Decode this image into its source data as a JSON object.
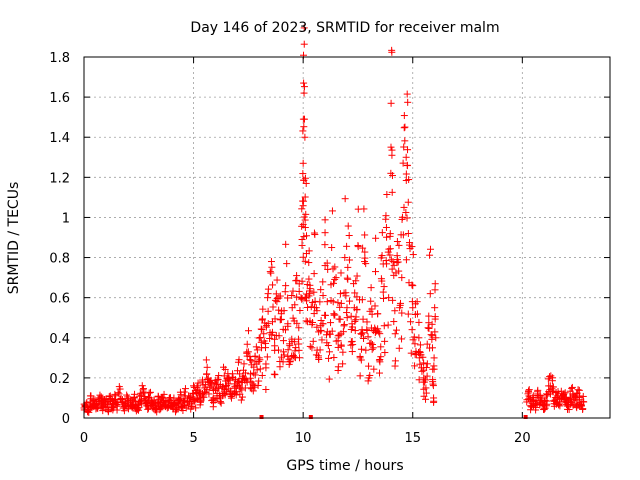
{
  "chart_data": {
    "type": "scatter",
    "title": "Day 146 of 2023, SRMTID for receiver malm",
    "xlabel": "GPS time / hours",
    "ylabel": "SRMTID / TECUs",
    "xlim": [
      0,
      24
    ],
    "ylim": [
      0,
      1.8
    ],
    "xticks": [
      0,
      5,
      10,
      15,
      20
    ],
    "xtick_labels": [
      "0",
      "5",
      "10",
      "15",
      "20"
    ],
    "yticks": [
      0,
      0.2,
      0.4,
      0.6,
      0.8,
      1,
      1.2,
      1.4,
      1.6,
      1.8
    ],
    "ytick_labels": [
      "0",
      "0.2",
      "0.4",
      "0.6",
      "0.8",
      "1",
      "1.2",
      "1.4",
      "1.6",
      "1.8"
    ],
    "grid": true,
    "marker": "+",
    "color": "#ff0000",
    "points": [
      [
        0.0,
        0.05
      ],
      [
        0.1,
        0.07
      ],
      [
        0.2,
        0.04
      ],
      [
        0.3,
        0.08
      ],
      [
        0.4,
        0.06
      ],
      [
        0.5,
        0.09
      ],
      [
        0.6,
        0.05
      ],
      [
        0.7,
        0.1
      ],
      [
        0.8,
        0.07
      ],
      [
        0.9,
        0.06
      ],
      [
        1.0,
        0.08
      ],
      [
        1.1,
        0.05
      ],
      [
        1.2,
        0.11
      ],
      [
        1.3,
        0.07
      ],
      [
        1.4,
        0.09
      ],
      [
        1.5,
        0.06
      ],
      [
        1.6,
        0.12
      ],
      [
        1.7,
        0.08
      ],
      [
        1.8,
        0.05
      ],
      [
        1.9,
        0.07
      ],
      [
        2.0,
        0.09
      ],
      [
        2.1,
        0.06
      ],
      [
        2.2,
        0.08
      ],
      [
        2.3,
        0.1
      ],
      [
        2.4,
        0.05
      ],
      [
        2.5,
        0.07
      ],
      [
        2.6,
        0.09
      ],
      [
        2.7,
        0.13
      ],
      [
        2.8,
        0.08
      ],
      [
        2.9,
        0.06
      ],
      [
        3.0,
        0.1
      ],
      [
        3.1,
        0.07
      ],
      [
        3.2,
        0.09
      ],
      [
        3.3,
        0.05
      ],
      [
        3.4,
        0.08
      ],
      [
        3.5,
        0.06
      ],
      [
        3.6,
        0.1
      ],
      [
        3.7,
        0.07
      ],
      [
        3.8,
        0.05
      ],
      [
        3.9,
        0.09
      ],
      [
        4.0,
        0.06
      ],
      [
        4.1,
        0.08
      ],
      [
        4.2,
        0.04
      ],
      [
        4.3,
        0.07
      ],
      [
        4.4,
        0.09
      ],
      [
        4.5,
        0.06
      ],
      [
        4.6,
        0.11
      ],
      [
        4.7,
        0.08
      ],
      [
        4.8,
        0.1
      ],
      [
        4.9,
        0.07
      ],
      [
        5.0,
        0.12
      ],
      [
        5.1,
        0.09
      ],
      [
        5.2,
        0.14
      ],
      [
        5.3,
        0.1
      ],
      [
        5.4,
        0.18
      ],
      [
        5.5,
        0.13
      ],
      [
        5.6,
        0.22
      ],
      [
        5.7,
        0.12
      ],
      [
        5.8,
        0.16
      ],
      [
        5.9,
        0.1
      ],
      [
        6.0,
        0.14
      ],
      [
        6.1,
        0.19
      ],
      [
        6.2,
        0.11
      ],
      [
        6.3,
        0.15
      ],
      [
        6.4,
        0.21
      ],
      [
        6.5,
        0.13
      ],
      [
        6.6,
        0.17
      ],
      [
        6.7,
        0.12
      ],
      [
        6.8,
        0.2
      ],
      [
        6.9,
        0.15
      ],
      [
        7.0,
        0.18
      ],
      [
        7.1,
        0.22
      ],
      [
        7.2,
        0.14
      ],
      [
        7.3,
        0.27
      ],
      [
        7.4,
        0.19
      ],
      [
        7.5,
        0.33
      ],
      [
        7.6,
        0.22
      ],
      [
        7.7,
        0.17
      ],
      [
        7.8,
        0.28
      ],
      [
        7.9,
        0.24
      ],
      [
        8.0,
        0.3
      ],
      [
        8.1,
        0.35
      ],
      [
        8.2,
        0.42
      ],
      [
        8.3,
        0.25
      ],
      [
        8.4,
        0.62
      ],
      [
        8.5,
        0.73
      ],
      [
        8.6,
        0.48
      ],
      [
        8.7,
        0.36
      ],
      [
        8.8,
        0.58
      ],
      [
        8.9,
        0.41
      ],
      [
        9.0,
        0.52
      ],
      [
        9.1,
        0.33
      ],
      [
        9.2,
        0.66
      ],
      [
        9.3,
        0.47
      ],
      [
        9.4,
        0.28
      ],
      [
        9.5,
        0.55
      ],
      [
        9.6,
        0.38
      ],
      [
        9.7,
        0.71
      ],
      [
        9.8,
        0.45
      ],
      [
        9.9,
        0.6
      ],
      [
        9.95,
        0.89
      ],
      [
        10.0,
        1.27
      ],
      [
        10.02,
        1.67
      ],
      [
        10.04,
        1.62
      ],
      [
        10.06,
        1.49
      ],
      [
        10.1,
        0.95
      ],
      [
        10.15,
        0.82
      ],
      [
        10.2,
        0.48
      ],
      [
        10.3,
        0.62
      ],
      [
        10.4,
        0.35
      ],
      [
        10.5,
        0.72
      ],
      [
        10.6,
        0.55
      ],
      [
        10.7,
        0.3
      ],
      [
        10.8,
        0.64
      ],
      [
        10.9,
        0.47
      ],
      [
        11.0,
        0.76
      ],
      [
        11.1,
        0.58
      ],
      [
        11.2,
        0.33
      ],
      [
        11.3,
        0.85
      ],
      [
        11.4,
        0.52
      ],
      [
        11.5,
        0.7
      ],
      [
        11.6,
        0.41
      ],
      [
        11.7,
        0.62
      ],
      [
        11.8,
        0.27
      ],
      [
        11.9,
        0.8
      ],
      [
        12.0,
        0.55
      ],
      [
        12.1,
        0.91
      ],
      [
        12.2,
        0.38
      ],
      [
        12.3,
        0.67
      ],
      [
        12.4,
        0.49
      ],
      [
        12.5,
        0.86
      ],
      [
        12.6,
        0.3
      ],
      [
        12.7,
        0.59
      ],
      [
        12.8,
        0.78
      ],
      [
        12.9,
        0.44
      ],
      [
        13.0,
        0.2
      ],
      [
        13.1,
        0.65
      ],
      [
        13.2,
        0.35
      ],
      [
        13.3,
        0.73
      ],
      [
        13.4,
        0.52
      ],
      [
        13.5,
        0.28
      ],
      [
        13.6,
        0.81
      ],
      [
        13.7,
        0.46
      ],
      [
        13.8,
        0.95
      ],
      [
        13.9,
        0.6
      ],
      [
        14.0,
        1.22
      ],
      [
        14.05,
        1.31
      ],
      [
        14.1,
        0.78
      ],
      [
        14.2,
        0.42
      ],
      [
        14.3,
        0.88
      ],
      [
        14.4,
        0.55
      ],
      [
        14.5,
        0.7
      ],
      [
        14.6,
        1.05
      ],
      [
        14.7,
        1.3
      ],
      [
        14.75,
        1.26
      ],
      [
        14.8,
        0.92
      ],
      [
        14.9,
        0.48
      ],
      [
        15.0,
        0.66
      ],
      [
        15.1,
        0.37
      ],
      [
        15.2,
        0.58
      ],
      [
        15.3,
        0.3
      ],
      [
        15.4,
        0.25
      ],
      [
        15.5,
        0.2
      ],
      [
        15.6,
        0.15
      ],
      [
        15.7,
        0.45
      ],
      [
        15.8,
        0.62
      ],
      [
        15.9,
        0.35
      ],
      [
        15.95,
        0.1
      ],
      [
        16.0,
        0.55
      ],
      [
        16.05,
        0.4
      ],
      [
        20.2,
        0.08
      ],
      [
        20.3,
        0.11
      ],
      [
        20.4,
        0.06
      ],
      [
        20.5,
        0.09
      ],
      [
        20.6,
        0.07
      ],
      [
        20.7,
        0.12
      ],
      [
        20.8,
        0.08
      ],
      [
        20.9,
        0.1
      ],
      [
        21.0,
        0.06
      ],
      [
        21.1,
        0.11
      ],
      [
        21.2,
        0.16
      ],
      [
        21.3,
        0.21
      ],
      [
        21.4,
        0.13
      ],
      [
        21.5,
        0.09
      ],
      [
        21.6,
        0.11
      ],
      [
        21.7,
        0.07
      ],
      [
        21.8,
        0.1
      ],
      [
        21.9,
        0.12
      ],
      [
        22.0,
        0.08
      ],
      [
        22.1,
        0.06
      ],
      [
        22.2,
        0.1
      ],
      [
        22.3,
        0.12
      ],
      [
        22.4,
        0.07
      ],
      [
        22.5,
        0.09
      ],
      [
        22.6,
        0.11
      ],
      [
        22.7,
        0.06
      ],
      [
        22.8,
        0.08
      ]
    ],
    "zero_markers": [
      8.1,
      10.35,
      20.15
    ]
  }
}
